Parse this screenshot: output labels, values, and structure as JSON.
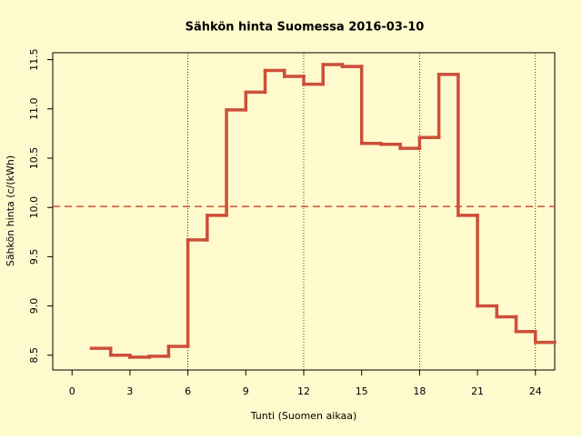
{
  "chart_data": {
    "type": "step",
    "title": "Sähkön hinta Suomessa 2016-03-10",
    "x_label": "Tunti (Suomen aikaa)",
    "y_label": "Sähkön hinta (c/(kWh)",
    "x": [
      1,
      2,
      3,
      4,
      5,
      6,
      7,
      8,
      9,
      10,
      11,
      12,
      13,
      14,
      15,
      16,
      17,
      18,
      19,
      20,
      21,
      22,
      23,
      24
    ],
    "series": [
      {
        "color": "#cd4f39",
        "values": [
          8.57,
          8.5,
          8.48,
          8.49,
          8.59,
          9.67,
          9.92,
          10.99,
          11.17,
          11.39,
          11.33,
          11.25,
          11.45,
          11.43,
          10.65,
          10.64,
          10.6,
          10.71,
          11.35,
          9.92,
          9.0,
          8.89,
          8.74,
          8.63
        ]
      }
    ],
    "mean_line": {
      "value": 10.01,
      "color": "#cd4f39"
    },
    "vlines": [
      6,
      12,
      18,
      24
    ],
    "xlim": [
      -1,
      25
    ],
    "ylim": [
      8.35,
      11.57
    ],
    "xticks": [
      0,
      3,
      6,
      9,
      12,
      15,
      18,
      21,
      24
    ],
    "yticks": [
      8.5,
      {
        "value": 9,
        "label": "9.0"
      },
      9.5,
      {
        "value": 10,
        "label": "10.0"
      },
      10.5,
      {
        "value": 11,
        "label": "11.0"
      },
      11.5
    ],
    "background": "#fffacd"
  }
}
